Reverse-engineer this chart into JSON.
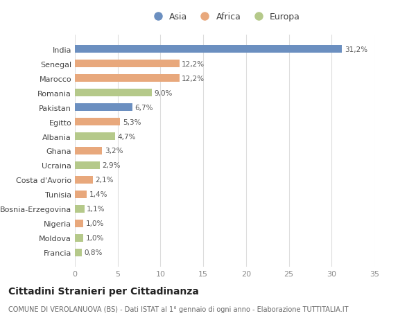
{
  "countries": [
    "India",
    "Senegal",
    "Marocco",
    "Romania",
    "Pakistan",
    "Egitto",
    "Albania",
    "Ghana",
    "Ucraina",
    "Costa d'Avorio",
    "Tunisia",
    "Bosnia-Erzegovina",
    "Nigeria",
    "Moldova",
    "Francia"
  ],
  "values": [
    31.2,
    12.2,
    12.2,
    9.0,
    6.7,
    5.3,
    4.7,
    3.2,
    2.9,
    2.1,
    1.4,
    1.1,
    1.0,
    1.0,
    0.8
  ],
  "labels": [
    "31,2%",
    "12,2%",
    "12,2%",
    "9,0%",
    "6,7%",
    "5,3%",
    "4,7%",
    "3,2%",
    "2,9%",
    "2,1%",
    "1,4%",
    "1,1%",
    "1,0%",
    "1,0%",
    "0,8%"
  ],
  "continents": [
    "Asia",
    "Africa",
    "Africa",
    "Europa",
    "Asia",
    "Africa",
    "Europa",
    "Africa",
    "Europa",
    "Africa",
    "Africa",
    "Europa",
    "Africa",
    "Europa",
    "Europa"
  ],
  "colors": {
    "Asia": "#6B8FC0",
    "Africa": "#E8A87C",
    "Europa": "#B5C98A"
  },
  "title": "Cittadini Stranieri per Cittadinanza",
  "subtitle": "COMUNE DI VEROLANUOVA (BS) - Dati ISTAT al 1° gennaio di ogni anno - Elaborazione TUTTITALIA.IT",
  "xlim": [
    0,
    35
  ],
  "xticks": [
    0,
    5,
    10,
    15,
    20,
    25,
    30,
    35
  ],
  "background_color": "#ffffff",
  "grid_color": "#dddddd",
  "bar_height": 0.55,
  "label_fontsize": 7.5,
  "tick_fontsize": 8,
  "legend_fontsize": 9,
  "title_fontsize": 10,
  "subtitle_fontsize": 7
}
